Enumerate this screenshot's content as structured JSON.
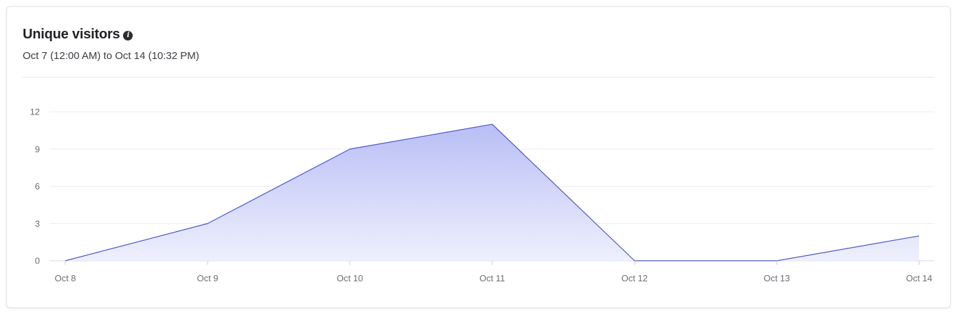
{
  "card": {
    "title": "Unique visitors",
    "info_icon": "info-icon",
    "subtitle": "Oct 7 (12:00 AM) to Oct 14 (10:32 PM)"
  },
  "colors": {
    "line": "#4a55c8",
    "fill_top": "#b9bef5",
    "fill_bottom": "#eef0fd",
    "grid": "#ebecef"
  },
  "chart_data": {
    "type": "area",
    "categories": [
      "Oct 8",
      "Oct 9",
      "Oct 10",
      "Oct 11",
      "Oct 12",
      "Oct 13",
      "Oct 14"
    ],
    "series": [
      {
        "values": [
          0,
          3,
          9,
          11,
          0,
          0,
          2
        ]
      }
    ],
    "title": "Unique visitors",
    "xlabel": "",
    "ylabel": "",
    "ylim": [
      0,
      12
    ],
    "yticks": [
      0,
      3,
      6,
      9,
      12
    ],
    "grid": true,
    "legend": "none"
  }
}
